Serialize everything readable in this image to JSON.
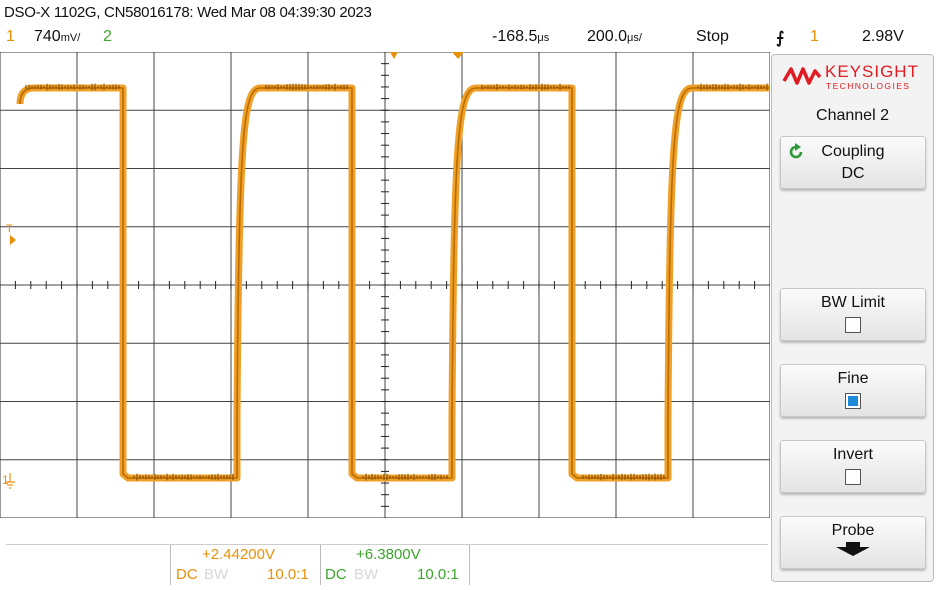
{
  "header": {
    "title": "DSO-X 1102G, CN58016178: Wed Mar 08 04:39:30 2023",
    "ch1_number": "1",
    "ch1_scale": "740",
    "ch1_scale_unit": "mV/",
    "ch2_number": "2",
    "time_offset": "-168.5",
    "time_offset_unit": "μs",
    "timebase": "200.0",
    "timebase_unit": "μs/",
    "run_state": "Stop",
    "trigger_slope_symbol": "⨍",
    "trigger_source": "1",
    "trigger_level": "2.98V"
  },
  "markers": {
    "trigger_level_marker": "T",
    "ch1_ground_marker": "1"
  },
  "side_panel": {
    "brand_name": "KEYSIGHT",
    "brand_sub": "TECHNOLOGIES",
    "menu_title": "Channel 2",
    "coupling_label": "Coupling",
    "coupling_value": "DC",
    "bw_limit_label": "BW Limit",
    "bw_limit_checked": false,
    "fine_label": "Fine",
    "fine_checked": true,
    "invert_label": "Invert",
    "invert_checked": false,
    "probe_label": "Probe"
  },
  "channel_info": {
    "ch1": {
      "offset": "+2.44200V",
      "coupling": "DC",
      "bw": "BW",
      "probe": "10.0:1"
    },
    "ch2": {
      "offset": "+6.3800V",
      "coupling": "DC",
      "bw": "BW",
      "probe": "10.0:1"
    }
  },
  "colors": {
    "ch1": "#e8900a",
    "ch2": "#3aa52a",
    "accent": "#1c8ad6",
    "brand": "#e11b22"
  }
}
